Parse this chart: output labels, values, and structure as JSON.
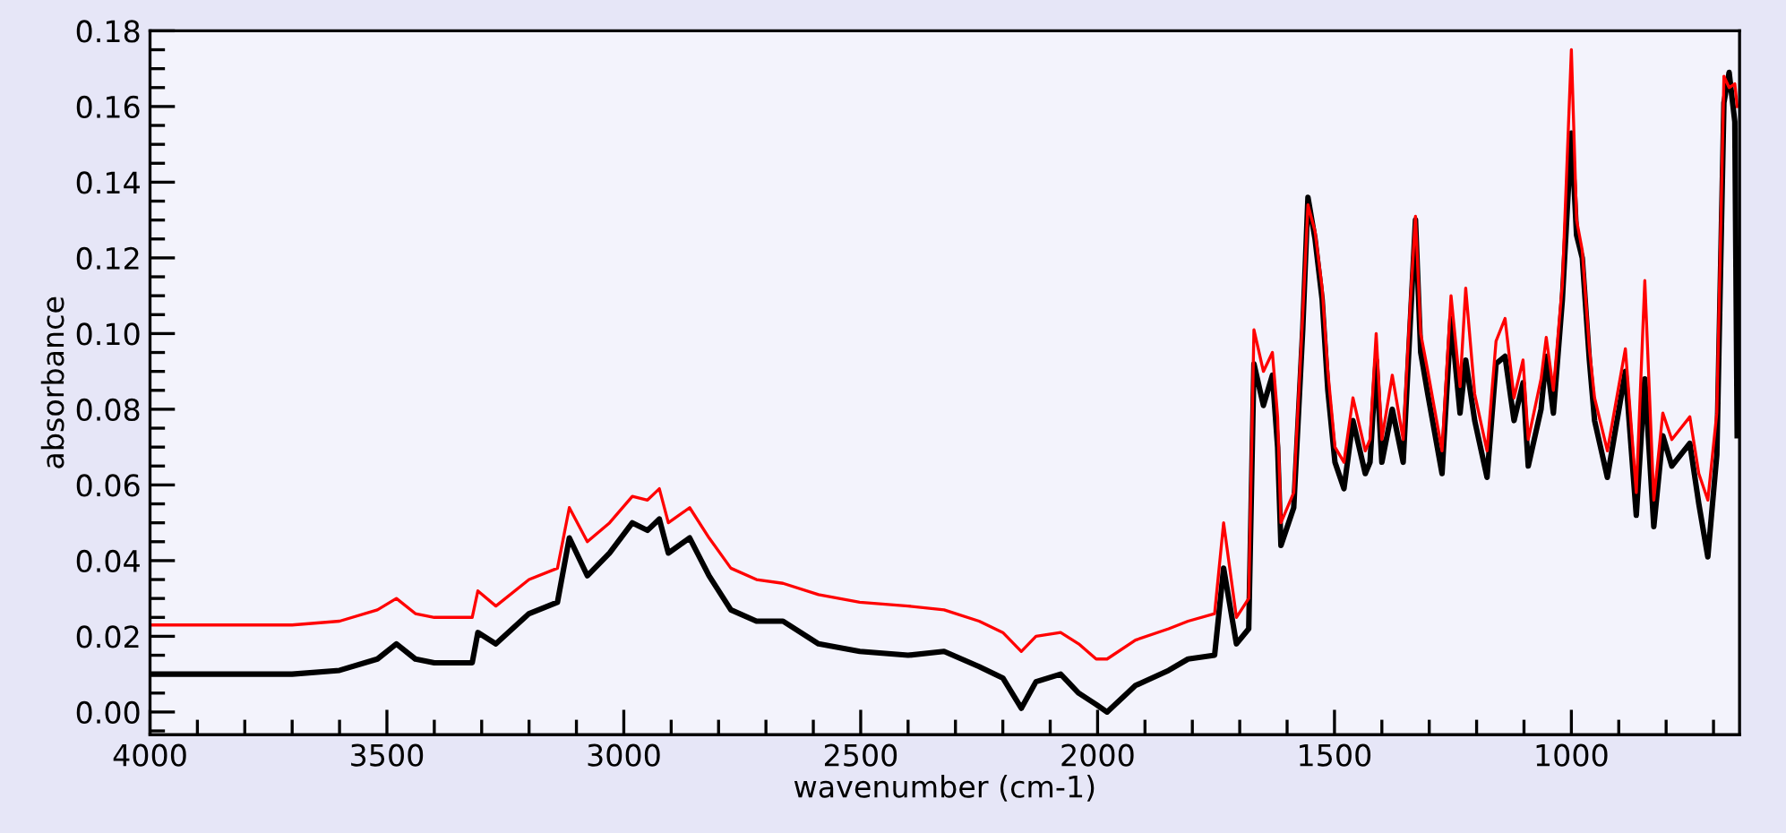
{
  "chart_data": {
    "type": "line",
    "xlabel": "wavenumber (cm-1)",
    "ylabel": "absorbance",
    "xlim": [
      4000,
      645
    ],
    "ylim": [
      -0.006,
      0.18
    ],
    "xticks": [
      4000,
      3500,
      3000,
      2500,
      2000,
      1500,
      1000,
      {
        "value": 3900,
        "label": null
      },
      {
        "value": 3800,
        "label": null
      },
      {
        "value": 3700,
        "label": null
      },
      {
        "value": 3600,
        "label": null
      },
      {
        "value": 3400,
        "label": null
      },
      {
        "value": 3300,
        "label": null
      },
      {
        "value": 3200,
        "label": null
      },
      {
        "value": 3100,
        "label": null
      },
      {
        "value": 2900,
        "label": null
      },
      {
        "value": 2800,
        "label": null
      },
      {
        "value": 2700,
        "label": null
      },
      {
        "value": 2600,
        "label": null
      },
      {
        "value": 2400,
        "label": null
      },
      {
        "value": 2300,
        "label": null
      },
      {
        "value": 2200,
        "label": null
      },
      {
        "value": 2100,
        "label": null
      },
      {
        "value": 1900,
        "label": null
      },
      {
        "value": 1800,
        "label": null
      },
      {
        "value": 1700,
        "label": null
      },
      {
        "value": 1600,
        "label": null
      },
      {
        "value": 1400,
        "label": null
      },
      {
        "value": 1300,
        "label": null
      },
      {
        "value": 1200,
        "label": null
      },
      {
        "value": 1100,
        "label": null
      },
      {
        "value": 900,
        "label": null
      },
      {
        "value": 800,
        "label": null
      },
      {
        "value": 700,
        "label": null
      }
    ],
    "yticks": [
      {
        "value": 0,
        "label": "0.00"
      },
      {
        "value": 0.02,
        "label": "0.02"
      },
      {
        "value": 0.04,
        "label": "0.04"
      },
      {
        "value": 0.06,
        "label": "0.06"
      },
      {
        "value": 0.08,
        "label": "0.08"
      },
      {
        "value": 0.1,
        "label": "0.10"
      },
      {
        "value": 0.12,
        "label": "0.12"
      },
      {
        "value": 0.14,
        "label": "0.14"
      },
      {
        "value": 0.16,
        "label": "0.16"
      },
      {
        "value": 0.18,
        "label": "0.18"
      },
      {
        "value": -0.005,
        "label": null
      },
      {
        "value": 0.005,
        "label": null
      },
      {
        "value": 0.01,
        "label": null
      },
      {
        "value": 0.015,
        "label": null
      },
      {
        "value": 0.025,
        "label": null
      },
      {
        "value": 0.03,
        "label": null
      },
      {
        "value": 0.035,
        "label": null
      },
      {
        "value": 0.045,
        "label": null
      },
      {
        "value": 0.05,
        "label": null
      },
      {
        "value": 0.055,
        "label": null
      },
      {
        "value": 0.065,
        "label": null
      },
      {
        "value": 0.07,
        "label": null
      },
      {
        "value": 0.075,
        "label": null
      },
      {
        "value": 0.085,
        "label": null
      },
      {
        "value": 0.09,
        "label": null
      },
      {
        "value": 0.095,
        "label": null
      },
      {
        "value": 0.105,
        "label": null
      },
      {
        "value": 0.11,
        "label": null
      },
      {
        "value": 0.115,
        "label": null
      },
      {
        "value": 0.125,
        "label": null
      },
      {
        "value": 0.13,
        "label": null
      },
      {
        "value": 0.135,
        "label": null
      },
      {
        "value": 0.145,
        "label": null
      },
      {
        "value": 0.15,
        "label": null
      },
      {
        "value": 0.155,
        "label": null
      },
      {
        "value": 0.165,
        "label": null
      },
      {
        "value": 0.17,
        "label": null
      },
      {
        "value": 0.175,
        "label": null
      }
    ],
    "marker": "none",
    "line_style": "solid",
    "x": [
      4000,
      3900,
      3800,
      3700,
      3600,
      3520,
      3480,
      3440,
      3400,
      3320,
      3308,
      3270,
      3200,
      3140,
      3115,
      3077,
      3030,
      2982,
      2950,
      2925,
      2906,
      2861,
      2820,
      2774,
      2720,
      2664,
      2589,
      2502,
      2400,
      2324,
      2250,
      2200,
      2161,
      2130,
      2078,
      2040,
      2003,
      1980,
      1920,
      1850,
      1809,
      1753,
      1734,
      1707,
      1681,
      1670,
      1650,
      1631,
      1620,
      1613,
      1586,
      1567,
      1556,
      1541,
      1526,
      1514,
      1499,
      1480,
      1461,
      1435,
      1425,
      1412,
      1400,
      1378,
      1355,
      1340,
      1329,
      1318,
      1303,
      1273,
      1254,
      1235,
      1223,
      1204,
      1178,
      1159,
      1140,
      1121,
      1102,
      1091,
      1064,
      1053,
      1038,
      1019,
      1000,
      989,
      977,
      962,
      951,
      924,
      886,
      863,
      845,
      826,
      807,
      788,
      750,
      731,
      712,
      693,
      678,
      667,
      655,
      650
    ],
    "series": [
      {
        "color": "#000000",
        "values": [
          0.01,
          0.01,
          0.01,
          0.01,
          0.011,
          0.014,
          0.018,
          0.014,
          0.013,
          0.013,
          0.021,
          0.018,
          0.026,
          0.029,
          0.046,
          0.036,
          0.042,
          0.05,
          0.048,
          0.051,
          0.042,
          0.046,
          0.036,
          0.027,
          0.024,
          0.024,
          0.018,
          0.016,
          0.015,
          0.016,
          0.012,
          0.009,
          0.001,
          0.008,
          0.01,
          0.005,
          0.002,
          0.0,
          0.007,
          0.011,
          0.014,
          0.015,
          0.038,
          0.018,
          0.022,
          0.092,
          0.081,
          0.089,
          0.07,
          0.044,
          0.054,
          0.101,
          0.136,
          0.125,
          0.109,
          0.085,
          0.066,
          0.059,
          0.077,
          0.063,
          0.066,
          0.093,
          0.066,
          0.08,
          0.066,
          0.103,
          0.13,
          0.095,
          0.084,
          0.063,
          0.104,
          0.079,
          0.093,
          0.077,
          0.062,
          0.092,
          0.094,
          0.077,
          0.087,
          0.065,
          0.08,
          0.094,
          0.079,
          0.109,
          0.153,
          0.126,
          0.12,
          0.093,
          0.077,
          0.062,
          0.09,
          0.052,
          0.088,
          0.049,
          0.073,
          0.065,
          0.071,
          0.055,
          0.041,
          0.068,
          0.161,
          0.169,
          0.156,
          0.073
        ]
      },
      {
        "color": "#ff0000",
        "values": [
          0.023,
          0.023,
          0.023,
          0.023,
          0.024,
          0.027,
          0.03,
          0.026,
          0.025,
          0.025,
          0.032,
          0.028,
          0.035,
          0.038,
          0.054,
          0.045,
          0.05,
          0.057,
          0.056,
          0.059,
          0.05,
          0.054,
          0.046,
          0.038,
          0.035,
          0.034,
          0.031,
          0.029,
          0.028,
          0.027,
          0.024,
          0.021,
          0.016,
          0.02,
          0.021,
          0.018,
          0.014,
          0.014,
          0.019,
          0.022,
          0.024,
          0.026,
          0.05,
          0.025,
          0.03,
          0.101,
          0.09,
          0.095,
          0.078,
          0.05,
          0.058,
          0.105,
          0.134,
          0.127,
          0.112,
          0.09,
          0.07,
          0.066,
          0.083,
          0.069,
          0.072,
          0.1,
          0.072,
          0.089,
          0.072,
          0.108,
          0.131,
          0.1,
          0.09,
          0.069,
          0.11,
          0.086,
          0.112,
          0.084,
          0.069,
          0.098,
          0.104,
          0.083,
          0.093,
          0.072,
          0.088,
          0.099,
          0.085,
          0.113,
          0.175,
          0.13,
          0.122,
          0.096,
          0.083,
          0.069,
          0.096,
          0.058,
          0.114,
          0.056,
          0.079,
          0.072,
          0.078,
          0.063,
          0.056,
          0.079,
          0.168,
          0.165,
          0.166,
          0.16
        ]
      }
    ]
  }
}
